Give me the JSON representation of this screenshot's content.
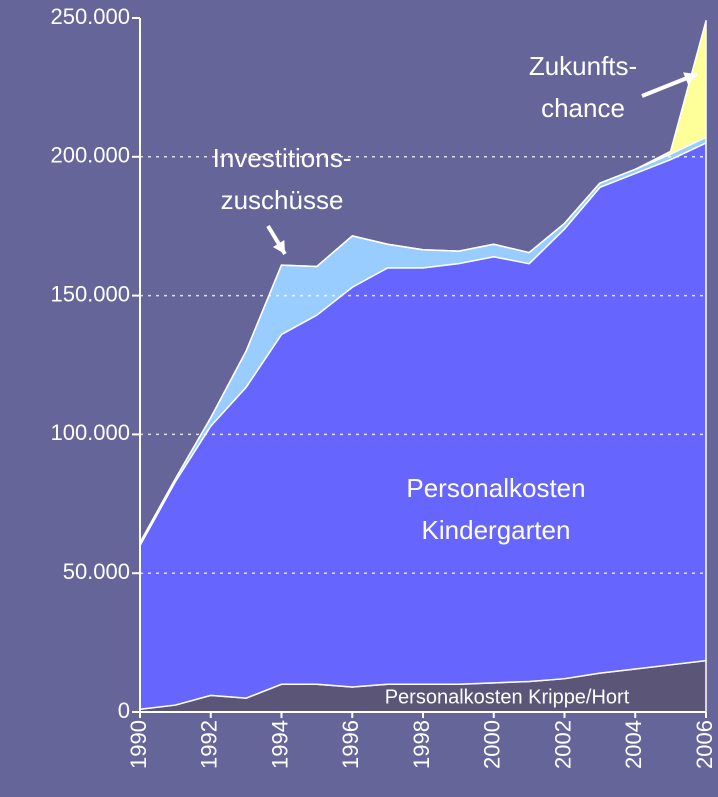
{
  "chart_data": {
    "type": "stacked_area",
    "x": [
      1990,
      1991,
      1992,
      1993,
      1994,
      1995,
      1996,
      1997,
      1998,
      1999,
      2000,
      2001,
      2002,
      2003,
      2004,
      2005,
      2006
    ],
    "series": [
      {
        "name": "Personalkosten Krippe/Hort",
        "color": "#5b5577",
        "values": [
          1000,
          2500,
          6000,
          5000,
          10000,
          10000,
          9000,
          10000,
          10000,
          10000,
          10500,
          11000,
          12000,
          14000,
          15500,
          17000,
          18500
        ]
      },
      {
        "name": "Personalkosten\nKindergarten",
        "color": "#6666ff",
        "values": [
          59000,
          80500,
          97000,
          112000,
          126000,
          133000,
          144000,
          150000,
          150000,
          151500,
          153500,
          150500,
          162000,
          175000,
          178500,
          182000,
          186500
        ]
      },
      {
        "name": "Investitions-\nzuschüsse",
        "color": "#99ccff",
        "values": [
          1000,
          1000,
          3000,
          13000,
          25000,
          17500,
          18500,
          8500,
          6500,
          4500,
          4500,
          4000,
          2000,
          1500,
          1500,
          2000,
          2000
        ]
      },
      {
        "name": "Zukunfts-\nchance",
        "color": "#ffff99",
        "values": [
          0,
          0,
          0,
          0,
          0,
          0,
          0,
          0,
          0,
          0,
          0,
          0,
          0,
          0,
          0,
          1000,
          42000
        ]
      }
    ],
    "xlim": [
      1990,
      2006
    ],
    "xticks": [
      1990,
      1992,
      1994,
      1996,
      1998,
      2000,
      2002,
      2004,
      2006
    ],
    "ylim": [
      0,
      250000
    ],
    "yticks": [
      0,
      {
        "value": 50000,
        "label": "50.000"
      },
      {
        "value": 100000,
        "label": "100.000"
      },
      {
        "value": 150000,
        "label": "150.000"
      },
      {
        "value": 200000,
        "label": "200.000"
      },
      {
        "value": 250000,
        "label": "250.000"
      }
    ],
    "grid": true
  }
}
